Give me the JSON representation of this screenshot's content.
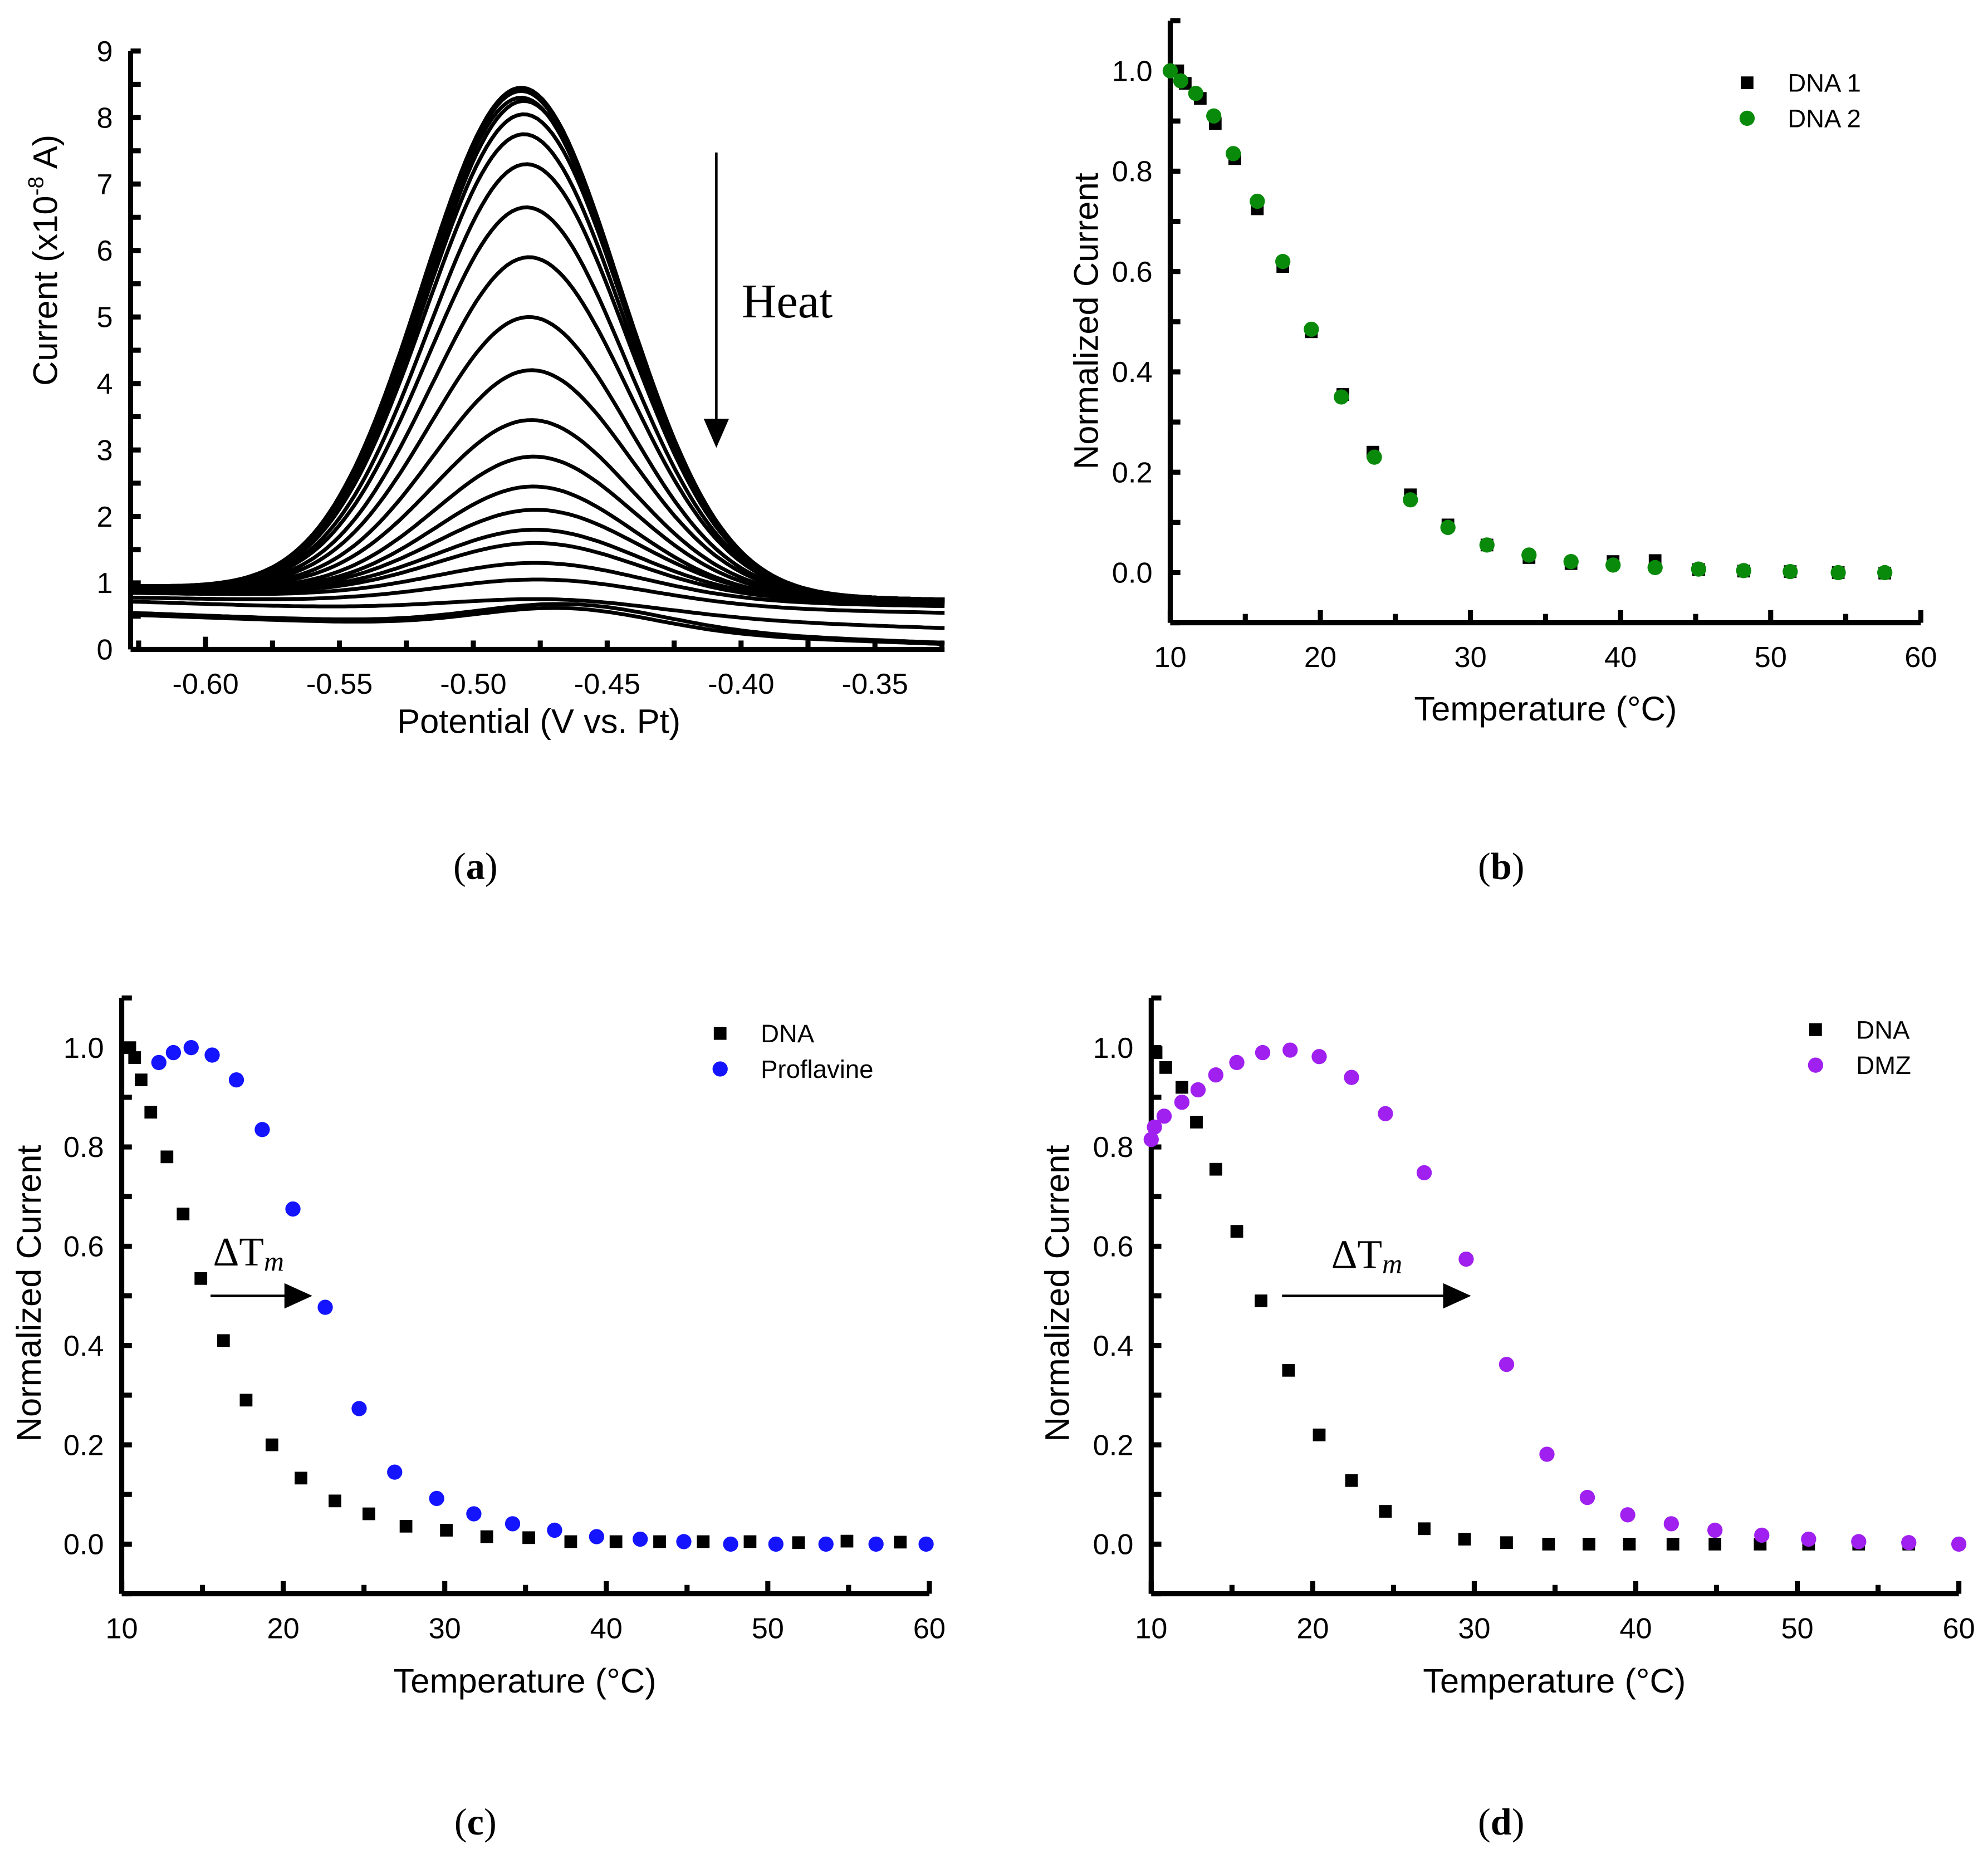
{
  "chart_data": [
    {
      "id": "a",
      "type": "line",
      "panel_label": "a",
      "xlabel": "Potential (V vs. Pt)",
      "ylabel_parts": [
        "Current (x10",
        "-8",
        " A)"
      ],
      "xlim": [
        -0.628,
        -0.324
      ],
      "ylim": [
        0,
        9
      ],
      "xticks": [
        -0.6,
        -0.55,
        -0.5,
        -0.45,
        -0.4,
        -0.35
      ],
      "xtick_labels": [
        "-0.60",
        "-0.55",
        "-0.50",
        "-0.45",
        "-0.40",
        "-0.35"
      ],
      "yticks": [
        0,
        1,
        2,
        3,
        4,
        5,
        6,
        7,
        8,
        9
      ],
      "ytick_labels": [
        "0",
        "1",
        "2",
        "3",
        "4",
        "5",
        "6",
        "7",
        "8",
        "9"
      ],
      "annotation": "Heat",
      "curve_model": "gaussian peak over sloping baseline; sigma in V",
      "curves": [
        {
          "peak": 8.45,
          "center": -0.482,
          "base_left": 0.95,
          "base_right": 0.75,
          "sigma": 0.037
        },
        {
          "peak": 8.4,
          "center": -0.482,
          "base_left": 0.95,
          "base_right": 0.75,
          "sigma": 0.037
        },
        {
          "peak": 8.3,
          "center": -0.482,
          "base_left": 0.95,
          "base_right": 0.75,
          "sigma": 0.037
        },
        {
          "peak": 8.25,
          "center": -0.481,
          "base_left": 0.95,
          "base_right": 0.75,
          "sigma": 0.037
        },
        {
          "peak": 8.05,
          "center": -0.481,
          "base_left": 0.95,
          "base_right": 0.75,
          "sigma": 0.037
        },
        {
          "peak": 7.75,
          "center": -0.481,
          "base_left": 0.95,
          "base_right": 0.75,
          "sigma": 0.037
        },
        {
          "peak": 7.3,
          "center": -0.48,
          "base_left": 0.95,
          "base_right": 0.75,
          "sigma": 0.037
        },
        {
          "peak": 6.65,
          "center": -0.48,
          "base_left": 0.95,
          "base_right": 0.75,
          "sigma": 0.037
        },
        {
          "peak": 5.9,
          "center": -0.479,
          "base_left": 0.95,
          "base_right": 0.75,
          "sigma": 0.037
        },
        {
          "peak": 5.0,
          "center": -0.479,
          "base_left": 0.95,
          "base_right": 0.75,
          "sigma": 0.037
        },
        {
          "peak": 4.2,
          "center": -0.478,
          "base_left": 0.95,
          "base_right": 0.75,
          "sigma": 0.037
        },
        {
          "peak": 3.45,
          "center": -0.478,
          "base_left": 0.95,
          "base_right": 0.75,
          "sigma": 0.037
        },
        {
          "peak": 2.9,
          "center": -0.477,
          "base_left": 0.93,
          "base_right": 0.74,
          "sigma": 0.037
        },
        {
          "peak": 2.45,
          "center": -0.477,
          "base_left": 0.92,
          "base_right": 0.72,
          "sigma": 0.037
        },
        {
          "peak": 2.1,
          "center": -0.476,
          "base_left": 0.91,
          "base_right": 0.72,
          "sigma": 0.038
        },
        {
          "peak": 1.8,
          "center": -0.476,
          "base_left": 0.9,
          "base_right": 0.71,
          "sigma": 0.038
        },
        {
          "peak": 1.6,
          "center": -0.476,
          "base_left": 0.88,
          "base_right": 0.7,
          "sigma": 0.038
        },
        {
          "peak": 1.3,
          "center": -0.475,
          "base_left": 0.85,
          "base_right": 0.65,
          "sigma": 0.039
        },
        {
          "peak": 1.05,
          "center": -0.473,
          "base_left": 0.78,
          "base_right": 0.55,
          "sigma": 0.04
        },
        {
          "peak": 0.75,
          "center": -0.468,
          "base_left": 0.72,
          "base_right": 0.32,
          "sigma": 0.04
        },
        {
          "peak": 0.68,
          "center": -0.463,
          "base_left": 0.55,
          "base_right": 0.1,
          "sigma": 0.035
        },
        {
          "peak": 0.62,
          "center": -0.465,
          "base_left": 0.52,
          "base_right": 0.08,
          "sigma": 0.033
        }
      ]
    },
    {
      "id": "b",
      "type": "scatter",
      "panel_label": "b",
      "xlabel": "Temperature (°C)",
      "ylabel": "Normalized Current",
      "xlim": [
        10,
        60
      ],
      "ylim": [
        -0.1,
        1.1
      ],
      "xticks": [
        10,
        20,
        30,
        40,
        50,
        60
      ],
      "xtick_labels": [
        "10",
        "20",
        "30",
        "40",
        "50",
        "60"
      ],
      "yticks": [
        0,
        0.2,
        0.4,
        0.6,
        0.8,
        1.0
      ],
      "ytick_labels": [
        "0.0",
        "0.2",
        "0.4",
        "0.6",
        "0.8",
        "1.0"
      ],
      "legend_position": "top-right",
      "series": [
        {
          "name": "DNA 1",
          "marker": "square",
          "color": "#000000",
          "x": [
            10.5,
            11,
            12,
            13,
            14.3,
            15.8,
            17.5,
            19.4,
            21.5,
            23.5,
            26,
            28.5,
            31.1,
            33.9,
            36.7,
            39.5,
            42.3,
            45.2,
            48.2,
            51.3,
            54.5,
            57.6
          ],
          "y": [
            1.0,
            0.975,
            0.945,
            0.895,
            0.825,
            0.725,
            0.61,
            0.48,
            0.355,
            0.24,
            0.155,
            0.095,
            0.055,
            0.03,
            0.018,
            0.022,
            0.024,
            0.006,
            0.003,
            0.002,
            0.0,
            -0.001
          ]
        },
        {
          "name": "DNA 2",
          "marker": "circle",
          "color": "#0a8a0a",
          "x": [
            10,
            10.7,
            11.7,
            12.9,
            14.2,
            15.8,
            17.5,
            19.4,
            21.4,
            23.6,
            26,
            28.5,
            31.1,
            33.9,
            36.7,
            39.5,
            42.3,
            45.2,
            48.2,
            51.3,
            54.5,
            57.6
          ],
          "y": [
            1.0,
            0.98,
            0.955,
            0.91,
            0.835,
            0.74,
            0.62,
            0.485,
            0.35,
            0.23,
            0.145,
            0.09,
            0.055,
            0.035,
            0.022,
            0.015,
            0.01,
            0.007,
            0.004,
            0.002,
            0.0,
            0.0
          ]
        }
      ]
    },
    {
      "id": "c",
      "type": "scatter",
      "panel_label": "c",
      "xlabel": "Temperature (°C)",
      "ylabel": "Normalized Current",
      "xlim": [
        10,
        60
      ],
      "ylim": [
        -0.1,
        1.1
      ],
      "xticks": [
        10,
        20,
        30,
        40,
        50,
        60
      ],
      "xtick_labels": [
        "10",
        "20",
        "30",
        "40",
        "50",
        "60"
      ],
      "yticks": [
        0,
        0.2,
        0.4,
        0.6,
        0.8,
        1.0
      ],
      "ytick_labels": [
        "0.0",
        "0.2",
        "0.4",
        "0.6",
        "0.8",
        "1.0"
      ],
      "legend_position": "top-right",
      "annotation": {
        "text": "ΔT",
        "sub": "m",
        "arrow_from": [
          15.5,
          0.5
        ],
        "arrow_to": [
          21.8,
          0.5
        ]
      },
      "series": [
        {
          "name": "DNA",
          "marker": "square",
          "color": "#000000",
          "x": [
            10.5,
            10.8,
            11.2,
            11.8,
            12.8,
            13.8,
            14.9,
            16.3,
            17.7,
            19.3,
            21.1,
            23.2,
            25.3,
            27.6,
            30.1,
            32.6,
            35.2,
            37.8,
            40.6,
            43.3,
            46.0,
            48.9,
            51.9,
            54.9,
            58.2
          ],
          "y": [
            1.0,
            0.98,
            0.935,
            0.87,
            0.78,
            0.665,
            0.535,
            0.41,
            0.29,
            0.2,
            0.133,
            0.087,
            0.061,
            0.036,
            0.028,
            0.015,
            0.013,
            0.005,
            0.005,
            0.005,
            0.005,
            0.005,
            0.003,
            0.006,
            0.004
          ]
        },
        {
          "name": "Proflavine",
          "marker": "circle",
          "color": "#1414ff",
          "x": [
            12.3,
            13.2,
            14.3,
            15.6,
            17.1,
            18.7,
            20.6,
            22.6,
            24.7,
            26.9,
            29.5,
            31.8,
            34.2,
            36.8,
            39.4,
            42.1,
            44.8,
            47.7,
            50.5,
            53.6,
            56.7,
            59.8
          ],
          "y": [
            0.97,
            0.99,
            1.0,
            0.985,
            0.935,
            0.835,
            0.675,
            0.477,
            0.273,
            0.145,
            0.092,
            0.061,
            0.041,
            0.028,
            0.015,
            0.01,
            0.005,
            0.0,
            0.0,
            0.0,
            0.0,
            0.0
          ]
        }
      ]
    },
    {
      "id": "d",
      "type": "scatter",
      "panel_label": "d",
      "xlabel": "Temperature (°C)",
      "ylabel": "Normalized Current",
      "xlim": [
        10,
        60
      ],
      "ylim": [
        -0.1,
        1.1
      ],
      "xticks": [
        10,
        20,
        30,
        40,
        50,
        60
      ],
      "xtick_labels": [
        "10",
        "20",
        "30",
        "40",
        "50",
        "60"
      ],
      "yticks": [
        0,
        0.2,
        0.4,
        0.6,
        0.8,
        1.0
      ],
      "ytick_labels": [
        "0.0",
        "0.2",
        "0.4",
        "0.6",
        "0.8",
        "1.0"
      ],
      "legend_position": "top-right",
      "annotation": {
        "text": "ΔT",
        "sub": "m",
        "arrow_from": [
          18.1,
          0.5
        ],
        "arrow_to": [
          29.8,
          0.5
        ]
      },
      "series": [
        {
          "name": "DNA",
          "marker": "square",
          "color": "#000000",
          "x": [
            10.3,
            10.9,
            11.9,
            12.8,
            14.0,
            15.3,
            16.8,
            18.5,
            20.4,
            22.4,
            24.5,
            26.9,
            29.4,
            32.0,
            34.6,
            37.1,
            39.6,
            42.3,
            44.9,
            47.7,
            50.7,
            53.8,
            56.9
          ],
          "y": [
            0.99,
            0.96,
            0.92,
            0.85,
            0.755,
            0.63,
            0.49,
            0.35,
            0.22,
            0.128,
            0.066,
            0.031,
            0.01,
            0.003,
            0.0,
            0.0,
            0.0,
            0.0,
            0.0,
            0.0,
            0.0,
            0.0,
            0.0
          ]
        },
        {
          "name": "DMZ",
          "marker": "circle",
          "color": "#a020f0",
          "x": [
            10,
            10.2,
            10.8,
            11.9,
            12.9,
            14.0,
            15.3,
            16.9,
            18.6,
            20.4,
            22.4,
            24.5,
            26.9,
            29.5,
            32.0,
            34.5,
            37.0,
            39.5,
            42.2,
            44.9,
            47.8,
            50.7,
            53.8,
            56.9,
            60
          ],
          "y": [
            0.815,
            0.84,
            0.862,
            0.89,
            0.915,
            0.945,
            0.97,
            0.99,
            0.995,
            0.982,
            0.94,
            0.867,
            0.748,
            0.574,
            0.362,
            0.181,
            0.094,
            0.059,
            0.041,
            0.028,
            0.018,
            0.01,
            0.005,
            0.003,
            0.0
          ]
        }
      ]
    }
  ]
}
